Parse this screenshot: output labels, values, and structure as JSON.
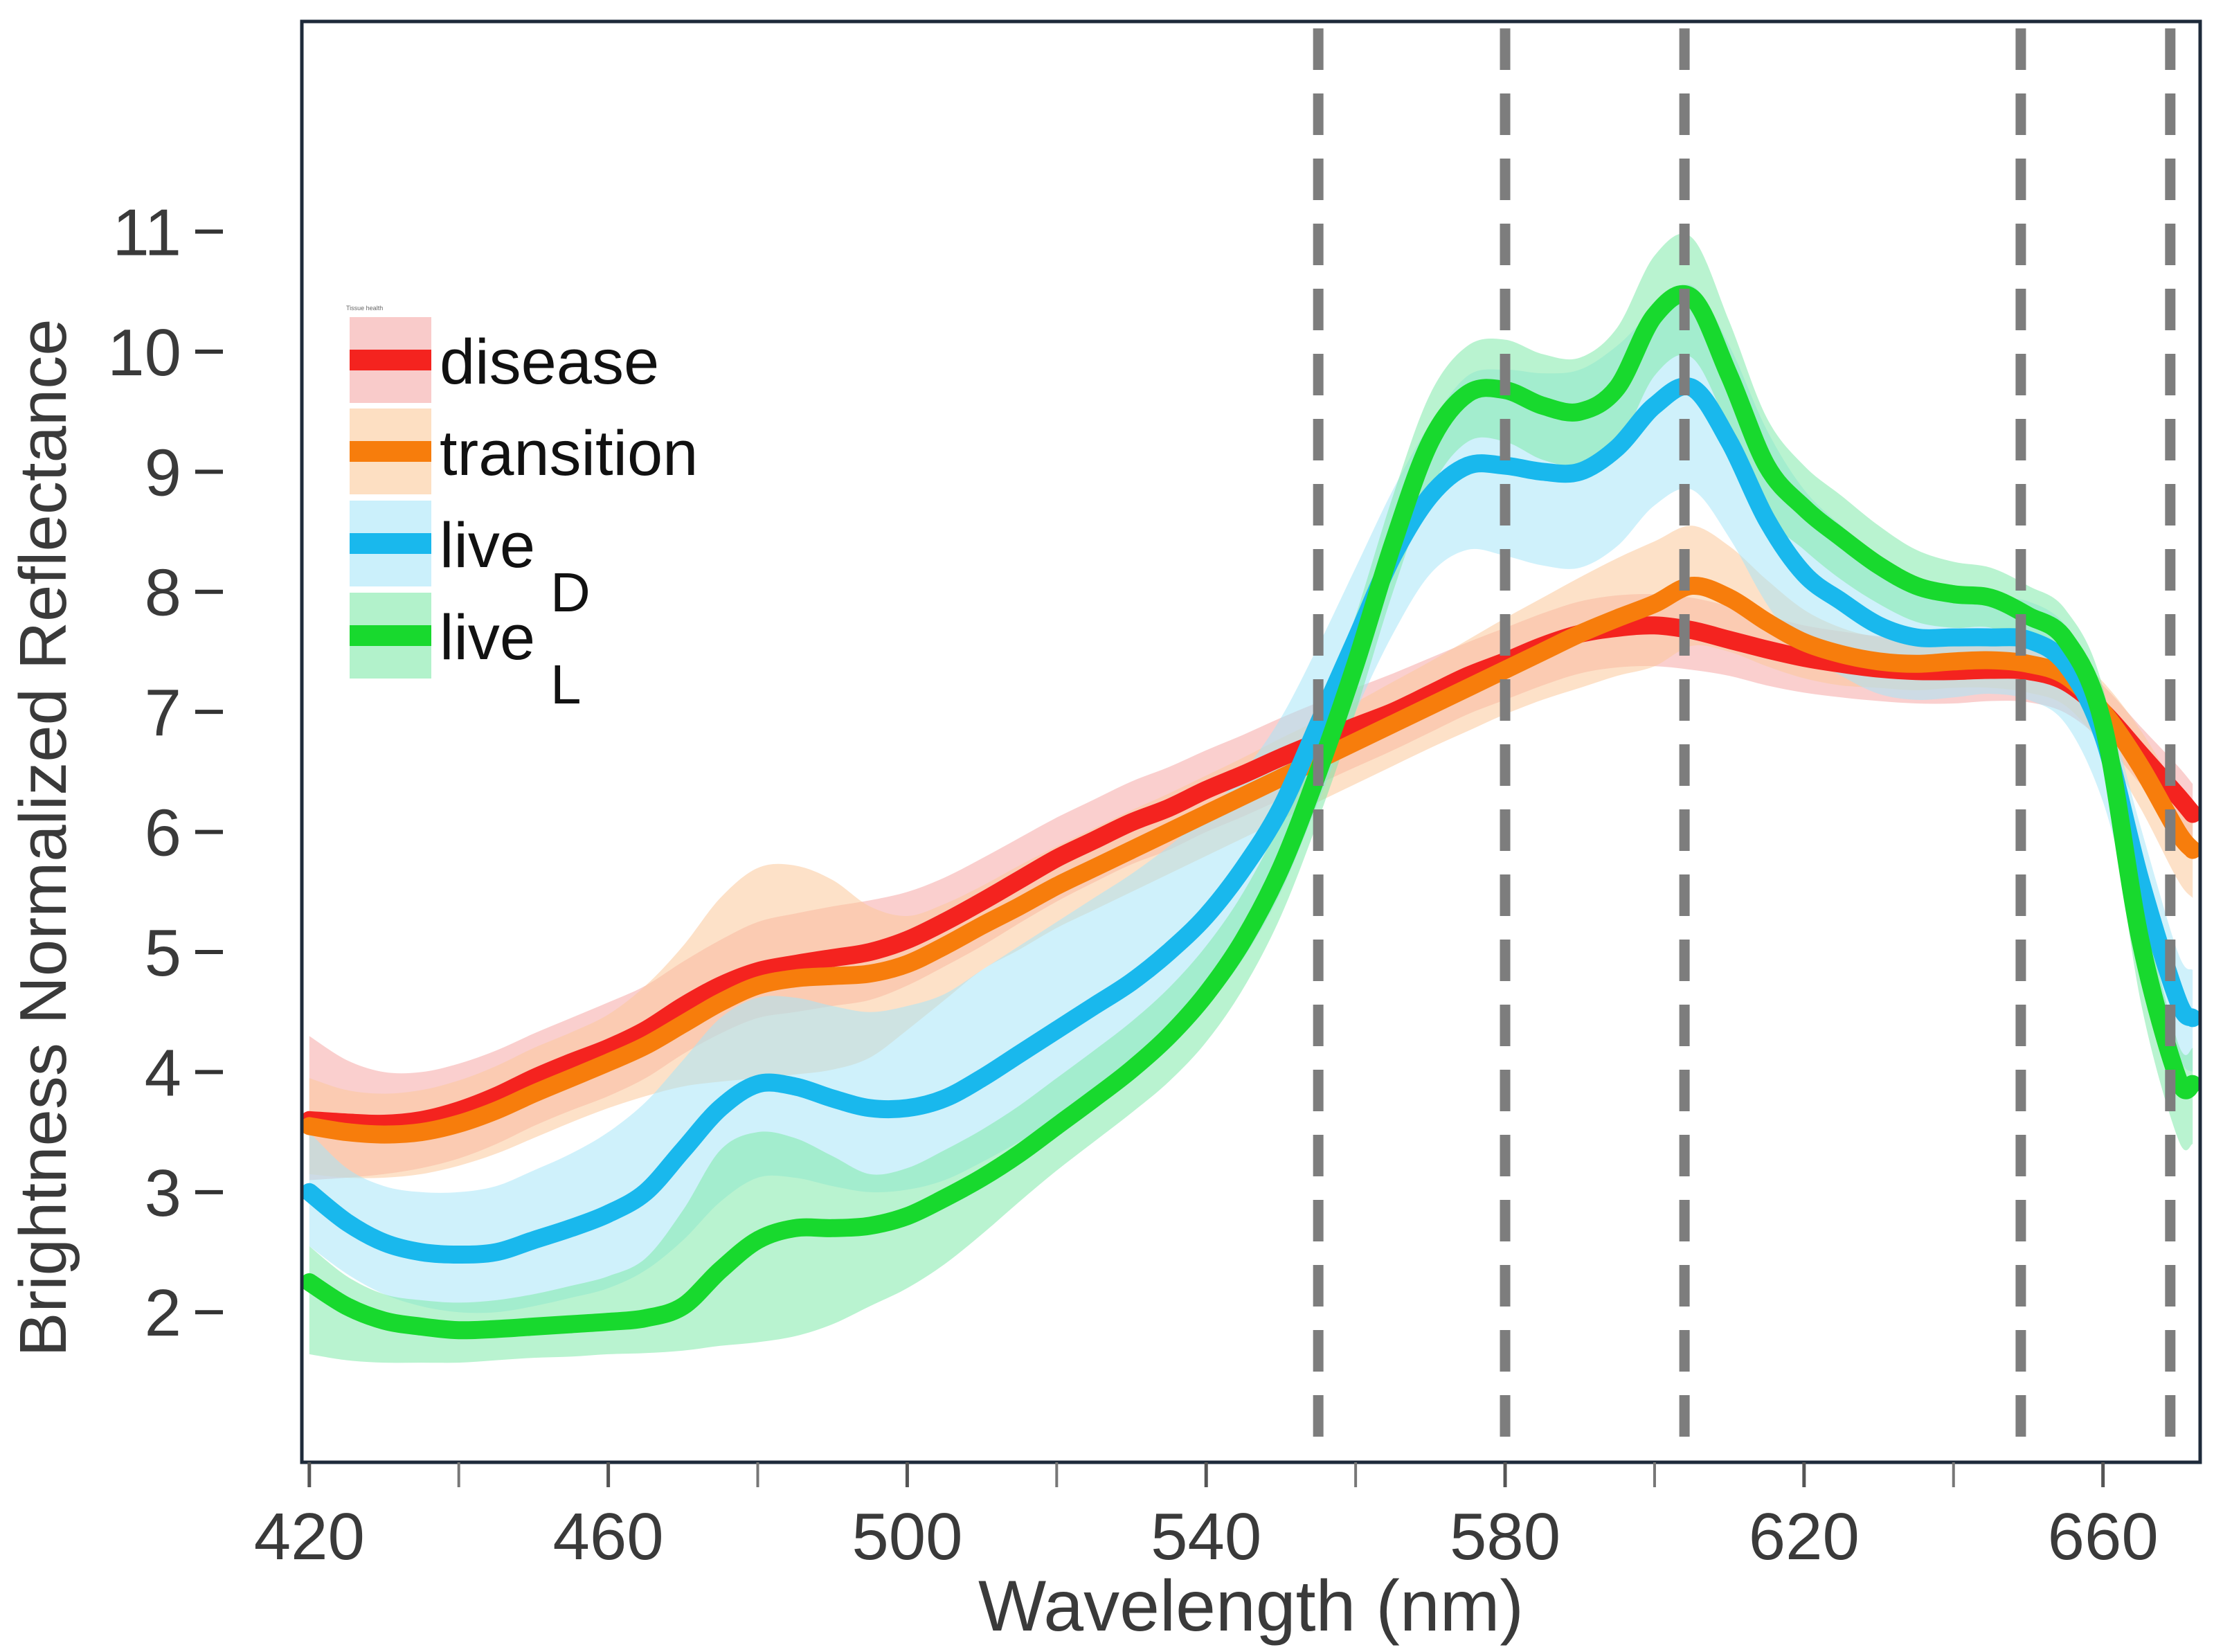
{
  "chart_data": {
    "type": "line",
    "title": "",
    "legend_title": "Tissue health",
    "xlabel": "Wavelength (nm)",
    "ylabel": "Brightness Normalized Reflectance",
    "xlim": [
      419,
      673
    ],
    "ylim": [
      0.75,
      12.75
    ],
    "x_ticks": [
      420,
      460,
      500,
      540,
      580,
      620,
      660
    ],
    "x_minor_ticks": [
      440,
      480,
      520,
      560,
      600,
      640
    ],
    "y_ticks": [
      2,
      3,
      4,
      5,
      6,
      7,
      8,
      9,
      10,
      11
    ],
    "grid": false,
    "legend_position": "top-left",
    "vertical_lines": [
      555,
      580,
      604,
      649,
      669
    ],
    "x": [
      420,
      425,
      430,
      435,
      440,
      445,
      450,
      455,
      460,
      465,
      470,
      475,
      480,
      485,
      490,
      495,
      500,
      505,
      510,
      515,
      520,
      525,
      530,
      535,
      540,
      545,
      550,
      555,
      560,
      565,
      570,
      575,
      580,
      585,
      590,
      595,
      600,
      605,
      610,
      615,
      620,
      625,
      630,
      635,
      640,
      645,
      650,
      655,
      660,
      665,
      670,
      672
    ],
    "series": [
      {
        "name": "disease",
        "subscript": "",
        "color": "#f4231f",
        "band_color": "#f5a8a6",
        "values": [
          3.6,
          3.58,
          3.57,
          3.6,
          3.68,
          3.8,
          3.95,
          4.08,
          4.2,
          4.35,
          4.55,
          4.72,
          4.84,
          4.9,
          4.95,
          5.0,
          5.1,
          5.25,
          5.42,
          5.6,
          5.78,
          5.93,
          6.08,
          6.2,
          6.35,
          6.48,
          6.62,
          6.75,
          6.88,
          7.0,
          7.15,
          7.3,
          7.42,
          7.55,
          7.65,
          7.7,
          7.72,
          7.68,
          7.6,
          7.52,
          7.45,
          7.4,
          7.36,
          7.34,
          7.34,
          7.35,
          7.34,
          7.25,
          7.0,
          6.65,
          6.3,
          6.15
        ],
        "upper": [
          4.3,
          4.1,
          4.0,
          4.0,
          4.07,
          4.18,
          4.32,
          4.45,
          4.58,
          4.72,
          4.92,
          5.1,
          5.25,
          5.32,
          5.38,
          5.43,
          5.5,
          5.62,
          5.78,
          5.95,
          6.12,
          6.27,
          6.42,
          6.54,
          6.68,
          6.81,
          6.95,
          7.08,
          7.2,
          7.32,
          7.45,
          7.58,
          7.7,
          7.82,
          7.92,
          7.97,
          7.98,
          7.95,
          7.88,
          7.8,
          7.72,
          7.67,
          7.63,
          7.61,
          7.6,
          7.6,
          7.58,
          7.48,
          7.22,
          6.88,
          6.55,
          6.4
        ],
        "lower": [
          3.1,
          3.12,
          3.15,
          3.2,
          3.28,
          3.4,
          3.55,
          3.68,
          3.8,
          3.95,
          4.15,
          4.32,
          4.45,
          4.5,
          4.55,
          4.6,
          4.72,
          4.88,
          5.05,
          5.24,
          5.42,
          5.58,
          5.73,
          5.85,
          6.0,
          6.13,
          6.27,
          6.4,
          6.54,
          6.68,
          6.83,
          6.98,
          7.1,
          7.22,
          7.32,
          7.37,
          7.38,
          7.35,
          7.3,
          7.22,
          7.16,
          7.12,
          7.09,
          7.07,
          7.07,
          7.09,
          7.08,
          6.99,
          6.75,
          6.4,
          6.05,
          5.9
        ]
      },
      {
        "name": "transition",
        "subscript": "",
        "color": "#f77d0c",
        "band_color": "#fbc99a",
        "values": [
          3.55,
          3.5,
          3.48,
          3.5,
          3.57,
          3.68,
          3.82,
          3.95,
          4.08,
          4.22,
          4.4,
          4.58,
          4.72,
          4.78,
          4.8,
          4.82,
          4.9,
          5.05,
          5.22,
          5.38,
          5.55,
          5.7,
          5.85,
          6.0,
          6.15,
          6.3,
          6.45,
          6.6,
          6.75,
          6.9,
          7.05,
          7.2,
          7.35,
          7.5,
          7.65,
          7.78,
          7.9,
          8.05,
          7.95,
          7.75,
          7.58,
          7.48,
          7.42,
          7.4,
          7.42,
          7.43,
          7.4,
          7.3,
          7.0,
          6.55,
          6.0,
          5.85
        ],
        "upper": [
          3.95,
          3.85,
          3.82,
          3.85,
          3.93,
          4.05,
          4.2,
          4.33,
          4.48,
          4.72,
          5.05,
          5.45,
          5.7,
          5.72,
          5.6,
          5.38,
          5.3,
          5.4,
          5.55,
          5.72,
          5.88,
          6.03,
          6.18,
          6.32,
          6.47,
          6.62,
          6.78,
          6.93,
          7.08,
          7.25,
          7.42,
          7.6,
          7.78,
          7.95,
          8.12,
          8.28,
          8.42,
          8.55,
          8.38,
          8.1,
          7.85,
          7.7,
          7.62,
          7.6,
          7.62,
          7.64,
          7.62,
          7.52,
          7.25,
          6.85,
          6.35,
          6.2
        ],
        "lower": [
          3.15,
          3.12,
          3.12,
          3.15,
          3.22,
          3.32,
          3.45,
          3.58,
          3.7,
          3.8,
          3.88,
          3.92,
          3.95,
          3.98,
          4.02,
          4.12,
          4.35,
          4.6,
          4.85,
          5.02,
          5.2,
          5.35,
          5.5,
          5.65,
          5.8,
          5.95,
          6.1,
          6.25,
          6.4,
          6.55,
          6.7,
          6.84,
          6.98,
          7.1,
          7.2,
          7.3,
          7.38,
          7.55,
          7.5,
          7.38,
          7.28,
          7.22,
          7.2,
          7.18,
          7.2,
          7.2,
          7.16,
          7.05,
          6.7,
          6.2,
          5.6,
          5.45
        ]
      },
      {
        "name": "live",
        "subscript": "D",
        "color": "#19b8ed",
        "band_color": "#a8e6f8",
        "values": [
          3.0,
          2.75,
          2.58,
          2.5,
          2.48,
          2.5,
          2.6,
          2.7,
          2.82,
          3.0,
          3.35,
          3.7,
          3.9,
          3.88,
          3.78,
          3.7,
          3.7,
          3.78,
          3.95,
          4.15,
          4.35,
          4.55,
          4.75,
          5.0,
          5.3,
          5.7,
          6.2,
          6.9,
          7.6,
          8.3,
          8.8,
          9.05,
          9.05,
          9.0,
          9.0,
          9.2,
          9.55,
          9.7,
          9.25,
          8.6,
          8.15,
          7.92,
          7.72,
          7.62,
          7.62,
          7.62,
          7.6,
          7.4,
          6.8,
          5.6,
          4.6,
          4.45
        ],
        "upper": [
          3.5,
          3.2,
          3.05,
          3.0,
          3.0,
          3.05,
          3.18,
          3.32,
          3.5,
          3.75,
          4.1,
          4.45,
          4.62,
          4.62,
          4.55,
          4.5,
          4.55,
          4.65,
          4.85,
          5.05,
          5.25,
          5.45,
          5.65,
          5.88,
          6.15,
          6.5,
          6.95,
          7.55,
          8.2,
          8.85,
          9.4,
          9.8,
          9.85,
          9.82,
          9.85,
          10.05,
          10.35,
          10.55,
          10.05,
          9.35,
          8.85,
          8.55,
          8.3,
          8.12,
          8.02,
          7.95,
          7.92,
          7.72,
          7.15,
          6.05,
          5.0,
          4.85
        ],
        "lower": [
          2.55,
          2.32,
          2.15,
          2.05,
          2.0,
          2.0,
          2.05,
          2.12,
          2.2,
          2.35,
          2.6,
          2.92,
          3.12,
          3.12,
          3.05,
          3.0,
          3.02,
          3.1,
          3.25,
          3.42,
          3.6,
          3.8,
          4.0,
          4.25,
          4.55,
          4.95,
          5.5,
          6.25,
          7.0,
          7.65,
          8.15,
          8.35,
          8.3,
          8.22,
          8.2,
          8.38,
          8.72,
          8.85,
          8.45,
          7.9,
          7.5,
          7.3,
          7.15,
          7.1,
          7.12,
          7.15,
          7.1,
          6.9,
          6.25,
          5.1,
          4.15,
          4.0
        ]
      },
      {
        "name": "live",
        "subscript": "L",
        "color": "#18d92e",
        "band_color": "#7fe9a9",
        "values": [
          2.25,
          2.05,
          1.93,
          1.88,
          1.85,
          1.86,
          1.88,
          1.9,
          1.92,
          1.95,
          2.05,
          2.35,
          2.6,
          2.7,
          2.7,
          2.72,
          2.8,
          2.95,
          3.12,
          3.32,
          3.55,
          3.78,
          4.02,
          4.3,
          4.65,
          5.1,
          5.7,
          6.5,
          7.4,
          8.4,
          9.25,
          9.65,
          9.68,
          9.55,
          9.5,
          9.7,
          10.3,
          10.45,
          9.8,
          9.05,
          8.7,
          8.45,
          8.22,
          8.05,
          7.98,
          7.95,
          7.8,
          7.6,
          6.9,
          5.1,
          3.95,
          3.9
        ],
        "upper": [
          2.55,
          2.3,
          2.15,
          2.1,
          2.08,
          2.1,
          2.15,
          2.22,
          2.3,
          2.45,
          2.85,
          3.35,
          3.5,
          3.45,
          3.3,
          3.15,
          3.2,
          3.35,
          3.52,
          3.72,
          3.95,
          4.18,
          4.42,
          4.7,
          5.05,
          5.5,
          6.1,
          6.9,
          7.8,
          8.8,
          9.65,
          10.05,
          10.1,
          9.98,
          9.95,
          10.2,
          10.8,
          10.95,
          10.25,
          9.45,
          9.05,
          8.8,
          8.55,
          8.35,
          8.25,
          8.2,
          8.05,
          7.85,
          7.2,
          5.5,
          4.25,
          4.2
        ],
        "lower": [
          1.65,
          1.6,
          1.58,
          1.58,
          1.58,
          1.6,
          1.62,
          1.63,
          1.65,
          1.66,
          1.68,
          1.72,
          1.75,
          1.8,
          1.9,
          2.05,
          2.2,
          2.4,
          2.65,
          2.92,
          3.18,
          3.42,
          3.66,
          3.92,
          4.25,
          4.7,
          5.3,
          6.1,
          7.0,
          8.0,
          8.85,
          9.25,
          9.25,
          9.1,
          9.05,
          9.2,
          9.8,
          9.95,
          9.35,
          8.65,
          8.35,
          8.1,
          7.9,
          7.75,
          7.7,
          7.7,
          7.55,
          7.32,
          6.55,
          4.6,
          3.45,
          3.4
        ]
      }
    ]
  }
}
